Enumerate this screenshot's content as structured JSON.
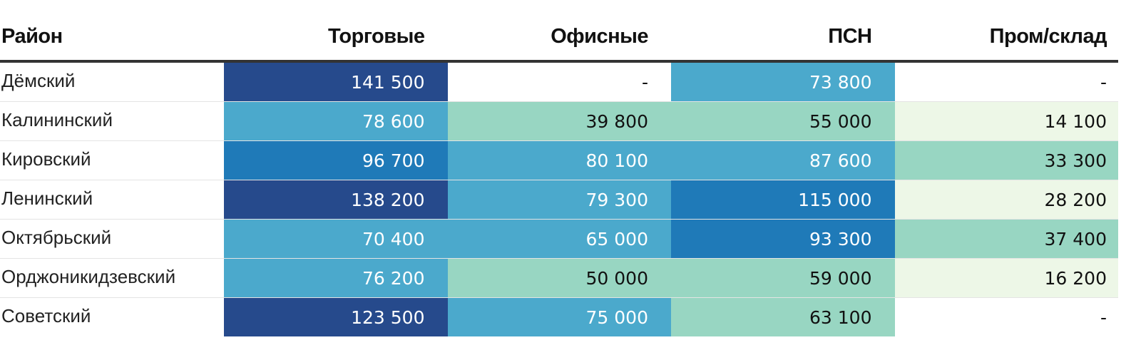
{
  "chart_data": {
    "type": "table",
    "columns": [
      "Район",
      "Торговые",
      "Офисные",
      "ПСН",
      "Пром/склад"
    ],
    "rows": [
      {
        "district": "Дёмский",
        "values": [
          "141 500",
          "-",
          "73 800",
          "-"
        ]
      },
      {
        "district": "Калининский",
        "values": [
          "78 600",
          "39 800",
          "55 000",
          "14 100"
        ]
      },
      {
        "district": "Кировский",
        "values": [
          "96 700",
          "80 100",
          "87 600",
          "33 300"
        ]
      },
      {
        "district": "Ленинский",
        "values": [
          "138 200",
          "79 300",
          "115 000",
          "28 200"
        ]
      },
      {
        "district": "Октябрьский",
        "values": [
          "70 400",
          "65 000",
          "93 300",
          "37 400"
        ]
      },
      {
        "district": "Орджоникидзевский",
        "values": [
          "76 200",
          "50 000",
          "59 000",
          "16 200"
        ]
      },
      {
        "district": "Советский",
        "values": [
          "123 500",
          "75 000",
          "63 100",
          "-"
        ]
      }
    ],
    "color_scale": {
      "bins": [
        {
          "min": 120000,
          "fill": "#264a8c",
          "text": "#ffffff"
        },
        {
          "min": 90000,
          "fill": "#1f7ab8",
          "text": "#ffffff"
        },
        {
          "min": 65000,
          "fill": "#4ba9cc",
          "text": "#ffffff"
        },
        {
          "min": 30000,
          "fill": "#98d6c2",
          "text": "#111111"
        },
        {
          "min": 0,
          "fill": "#edf7e7",
          "text": "#111111"
        }
      ],
      "empty": {
        "fill": "#ffffff",
        "text": "#111111"
      }
    }
  }
}
